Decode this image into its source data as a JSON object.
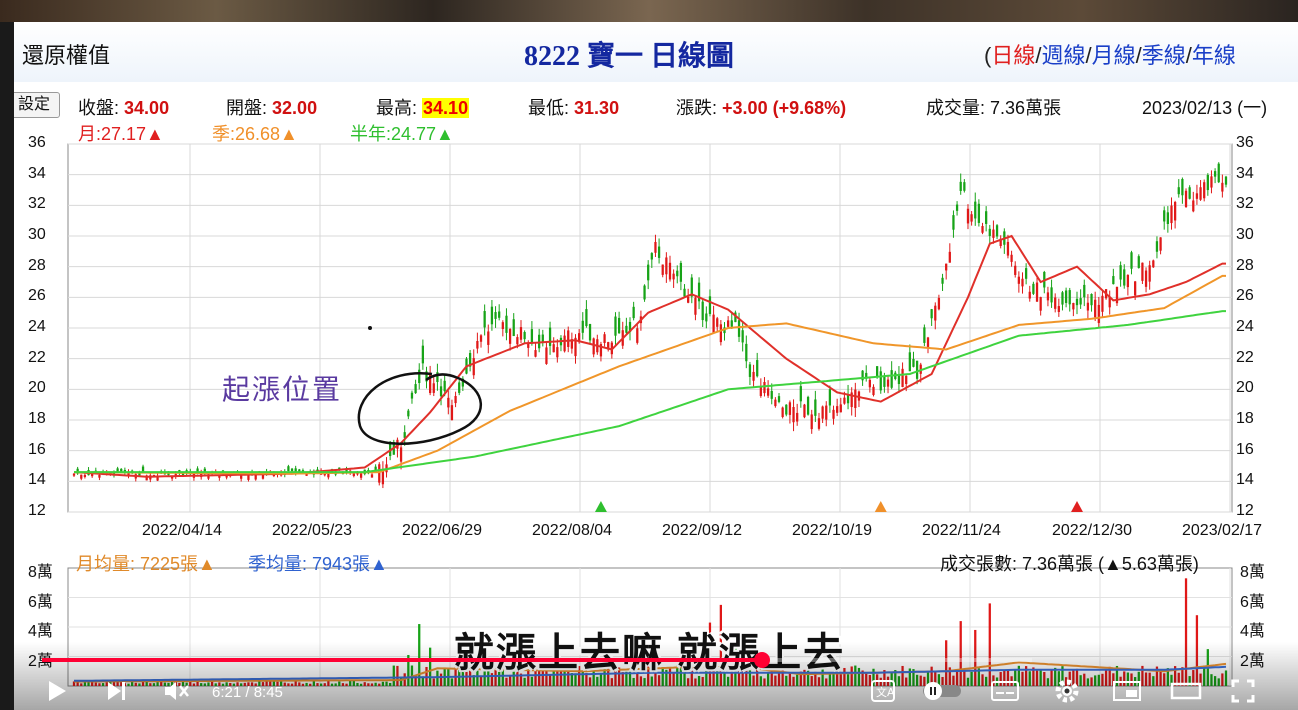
{
  "header": {
    "back_label": "還原權值",
    "title": "8222 寶一  日線圖",
    "period_open": "(",
    "periods": [
      "日線",
      "週線",
      "月線",
      "季線",
      "年線"
    ],
    "period_sep": "/"
  },
  "info": {
    "settings": "設定",
    "close_label": "收盤:",
    "close_value": "34.00",
    "open_label": "開盤:",
    "open_value": "32.00",
    "high_label": "最高:",
    "high_value": "34.10",
    "low_label": "最低:",
    "low_value": "31.30",
    "change_label": "漲跌:",
    "change_value": "+3.00  (+9.68%)",
    "volume_label": "成交量:",
    "volume_value": "7.36萬張",
    "date": "2023/02/13 (一)"
  },
  "ma_legend": {
    "month": "月:27.17▲",
    "quarter": "季:26.68▲",
    "halfyear": "半年:24.77▲"
  },
  "annotation": "起漲位置",
  "volume_panel": {
    "month_avg": "月均量: 7225張▲",
    "quarter_avg": "季均量: 7943張▲",
    "total": "成交張數: 7.36萬張 (▲5.63萬張)"
  },
  "subtitle": "就漲上去嘛 就漲上去",
  "player": {
    "time": "6:21 / 8:45",
    "progress": 0.727
  },
  "colors": {
    "up": "#e01818",
    "down": "#17a317",
    "ma_month": "#e0302a",
    "ma_quarter": "#f0962a",
    "ma_half": "#3fd33f",
    "vol_month": "#e89030",
    "vol_quarter": "#3a6fd8"
  },
  "chart_data": [
    {
      "type": "candlestick",
      "title": "8222 寶一 日線圖",
      "ylim": [
        12,
        36
      ],
      "y_ticks": [
        "12",
        "14",
        "16",
        "18",
        "20",
        "22",
        "24",
        "26",
        "28",
        "30",
        "32",
        "34",
        "36"
      ],
      "x_ticks": [
        "2022/04/14",
        "2022/05/23",
        "2022/06/29",
        "2022/08/04",
        "2022/09/12",
        "2022/10/19",
        "2022/11/24",
        "2022/12/30",
        "2023/02/17"
      ],
      "grid": true,
      "series": [
        {
          "name": "月",
          "keypoints": [
            [
              0,
              14.6
            ],
            [
              20,
              14.3
            ],
            [
              60,
              14.5
            ],
            [
              80,
              14.9
            ],
            [
              90,
              16.5
            ],
            [
              98,
              18.5
            ],
            [
              108,
              21.5
            ],
            [
              124,
              23.0
            ],
            [
              138,
              23.2
            ],
            [
              148,
              22.6
            ],
            [
              158,
              25.0
            ],
            [
              170,
              26.2
            ],
            [
              180,
              25.2
            ],
            [
              196,
              22.0
            ],
            [
              210,
              19.8
            ],
            [
              222,
              19.2
            ],
            [
              236,
              21.0
            ],
            [
              246,
              26.0
            ],
            [
              252,
              29.5
            ],
            [
              258,
              30.0
            ],
            [
              266,
              27.0
            ],
            [
              276,
              28.0
            ],
            [
              286,
              25.8
            ],
            [
              296,
              26.2
            ],
            [
              306,
              27.0
            ],
            [
              316,
              28.2
            ]
          ]
        },
        {
          "name": "季",
          "keypoints": [
            [
              0,
              14.6
            ],
            [
              60,
              14.5
            ],
            [
              84,
              14.6
            ],
            [
              100,
              16.0
            ],
            [
              120,
              18.6
            ],
            [
              150,
              21.5
            ],
            [
              180,
              24.0
            ],
            [
              196,
              24.3
            ],
            [
              220,
              23.0
            ],
            [
              240,
              22.6
            ],
            [
              250,
              23.4
            ],
            [
              260,
              24.2
            ],
            [
              280,
              24.6
            ],
            [
              300,
              25.3
            ],
            [
              316,
              27.4
            ]
          ]
        },
        {
          "name": "半年",
          "keypoints": [
            [
              0,
              14.6
            ],
            [
              80,
              14.6
            ],
            [
              110,
              15.6
            ],
            [
              150,
              17.6
            ],
            [
              180,
              20.0
            ],
            [
              200,
              20.4
            ],
            [
              230,
              21.0
            ],
            [
              260,
              23.5
            ],
            [
              290,
              24.2
            ],
            [
              316,
              25.1
            ]
          ]
        }
      ]
    },
    {
      "type": "bar",
      "title": "volume",
      "ylim": [
        0,
        8
      ],
      "y_ticks": [
        "2萬",
        "4萬",
        "6萬",
        "8萬"
      ],
      "spikes": [
        [
          92,
          2.1
        ],
        [
          95,
          4.2
        ],
        [
          98,
          2.6
        ],
        [
          175,
          4.3
        ],
        [
          178,
          5.5
        ],
        [
          182,
          3.2
        ],
        [
          240,
          3.1
        ],
        [
          244,
          4.4
        ],
        [
          248,
          3.8
        ],
        [
          252,
          5.6
        ],
        [
          306,
          7.3
        ],
        [
          309,
          4.8
        ],
        [
          312,
          2.5
        ]
      ]
    }
  ]
}
